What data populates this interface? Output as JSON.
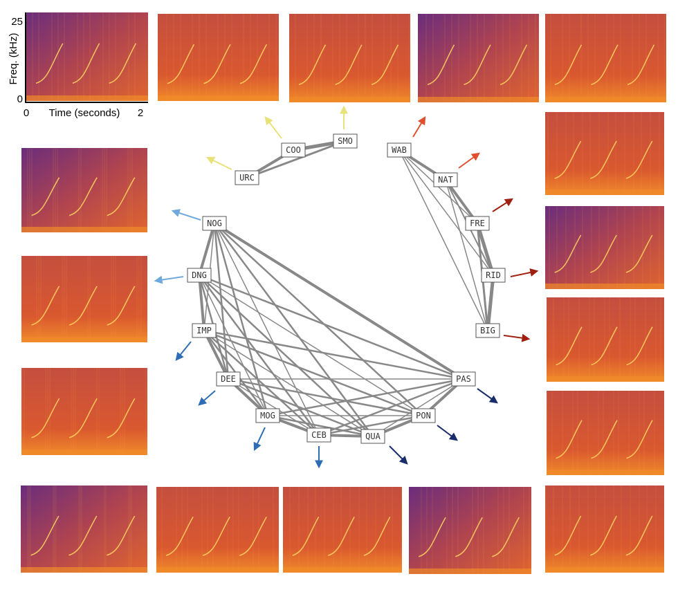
{
  "axes": {
    "y_label": "Freq. (kHz)",
    "y_ticks": [
      "25",
      "0"
    ],
    "x_ticks": [
      "0",
      "2"
    ],
    "x_label": "Time (seconds)"
  },
  "nodes": [
    {
      "label": "URC"
    },
    {
      "label": "COO"
    },
    {
      "label": "SMO"
    },
    {
      "label": "WAB"
    },
    {
      "label": "NAT"
    },
    {
      "label": "FRE"
    },
    {
      "label": "RID"
    },
    {
      "label": "BIG"
    },
    {
      "label": "PAS"
    },
    {
      "label": "PON"
    },
    {
      "label": "QUA"
    },
    {
      "label": "CEB"
    },
    {
      "label": "MOG"
    },
    {
      "label": "DEE"
    },
    {
      "label": "IMP"
    },
    {
      "label": "DNG"
    },
    {
      "label": "NOG"
    }
  ]
}
